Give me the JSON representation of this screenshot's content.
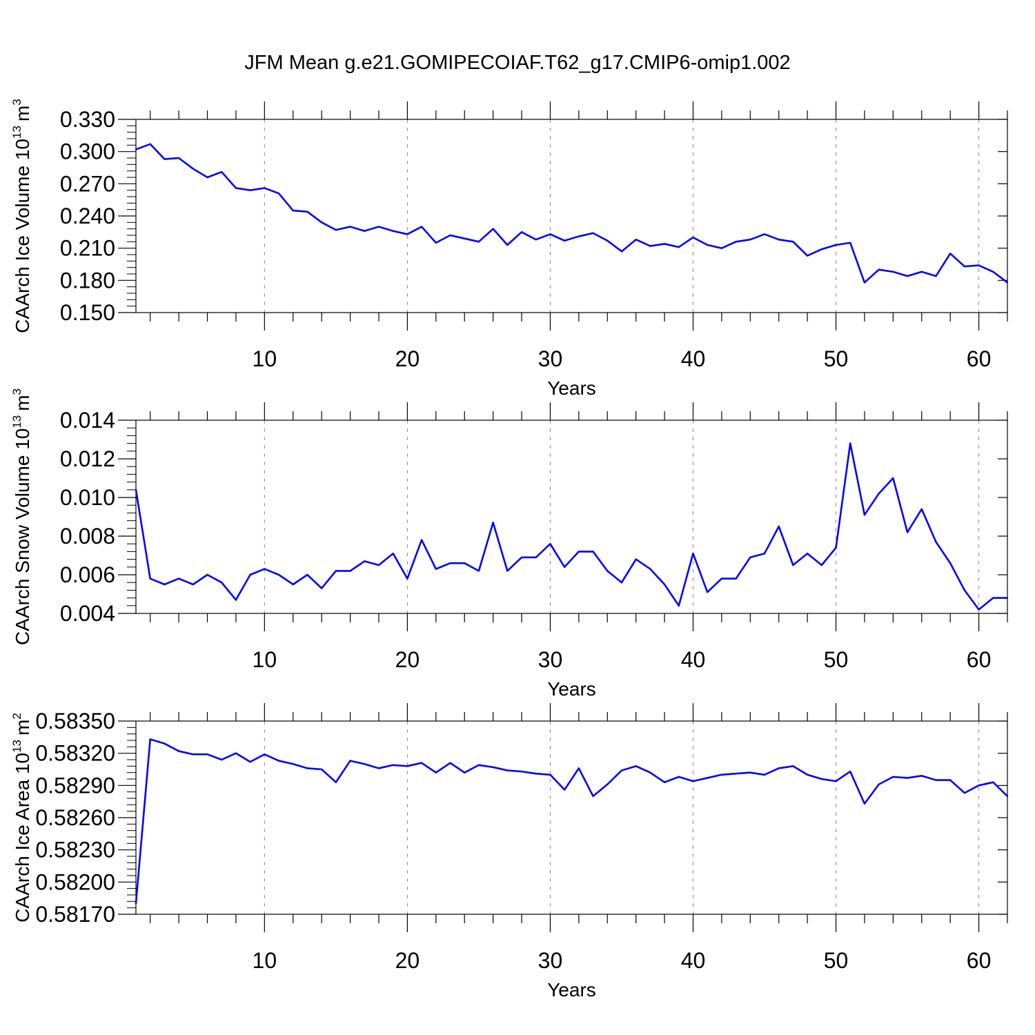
{
  "title": "JFM Mean g.e21.GOMIPECOIAF.T62_g17.CMIP6-omip1.002",
  "colors": {
    "line": "#0000ff",
    "axis": "#000000",
    "grid": "#888888"
  },
  "chart_data": [
    {
      "type": "line",
      "ylabel": "CAArch Ice Volume 10",
      "ylabel_exp": "13",
      "ylabel_unit": "m",
      "ylabel_unit_exp": "3",
      "xlabel": "Years",
      "xlim": [
        1,
        62
      ],
      "ylim": [
        0.15,
        0.33
      ],
      "yticks": [
        "0.150",
        "0.180",
        "0.210",
        "0.240",
        "0.270",
        "0.300",
        "0.330"
      ],
      "xticks": [
        "10",
        "20",
        "30",
        "40",
        "50",
        "60"
      ],
      "x": [
        1,
        2,
        3,
        4,
        5,
        6,
        7,
        8,
        9,
        10,
        11,
        12,
        13,
        14,
        15,
        16,
        17,
        18,
        19,
        20,
        21,
        22,
        23,
        24,
        25,
        26,
        27,
        28,
        29,
        30,
        31,
        32,
        33,
        34,
        35,
        36,
        37,
        38,
        39,
        40,
        41,
        42,
        43,
        44,
        45,
        46,
        47,
        48,
        49,
        50,
        51,
        52,
        53,
        54,
        55,
        56,
        57,
        58,
        59,
        60,
        61,
        62
      ],
      "values": [
        0.302,
        0.307,
        0.293,
        0.294,
        0.284,
        0.276,
        0.281,
        0.266,
        0.264,
        0.266,
        0.261,
        0.245,
        0.244,
        0.234,
        0.227,
        0.23,
        0.226,
        0.23,
        0.226,
        0.223,
        0.23,
        0.215,
        0.222,
        0.219,
        0.216,
        0.228,
        0.213,
        0.225,
        0.218,
        0.223,
        0.217,
        0.221,
        0.224,
        0.217,
        0.207,
        0.218,
        0.212,
        0.214,
        0.211,
        0.22,
        0.213,
        0.21,
        0.216,
        0.218,
        0.223,
        0.218,
        0.216,
        0.203,
        0.209,
        0.213,
        0.215,
        0.178,
        0.19,
        0.188,
        0.184,
        0.188,
        0.184,
        0.205,
        0.193,
        0.194,
        0.188,
        0.178
      ]
    },
    {
      "type": "line",
      "ylabel": "CAArch Snow Volume 10",
      "ylabel_exp": "13",
      "ylabel_unit": "m",
      "ylabel_unit_exp": "3",
      "xlabel": "Years",
      "xlim": [
        1,
        62
      ],
      "ylim": [
        0.004,
        0.014
      ],
      "yticks": [
        "0.004",
        "0.006",
        "0.008",
        "0.010",
        "0.012",
        "0.014"
      ],
      "xticks": [
        "10",
        "20",
        "30",
        "40",
        "50",
        "60"
      ],
      "x": [
        1,
        2,
        3,
        4,
        5,
        6,
        7,
        8,
        9,
        10,
        11,
        12,
        13,
        14,
        15,
        16,
        17,
        18,
        19,
        20,
        21,
        22,
        23,
        24,
        25,
        26,
        27,
        28,
        29,
        30,
        31,
        32,
        33,
        34,
        35,
        36,
        37,
        38,
        39,
        40,
        41,
        42,
        43,
        44,
        45,
        46,
        47,
        48,
        49,
        50,
        51,
        52,
        53,
        54,
        55,
        56,
        57,
        58,
        59,
        60,
        61,
        62
      ],
      "values": [
        0.0104,
        0.0058,
        0.0055,
        0.0058,
        0.0055,
        0.006,
        0.0056,
        0.0047,
        0.006,
        0.0063,
        0.006,
        0.0055,
        0.006,
        0.0053,
        0.0062,
        0.0062,
        0.0067,
        0.0065,
        0.0071,
        0.0058,
        0.0078,
        0.0063,
        0.0066,
        0.0066,
        0.0062,
        0.0087,
        0.0062,
        0.0069,
        0.0069,
        0.0076,
        0.0064,
        0.0072,
        0.0072,
        0.0062,
        0.0056,
        0.0068,
        0.0063,
        0.0055,
        0.0044,
        0.0071,
        0.0051,
        0.0058,
        0.0058,
        0.0069,
        0.0071,
        0.0085,
        0.0065,
        0.0071,
        0.0065,
        0.0074,
        0.0128,
        0.0091,
        0.0102,
        0.011,
        0.0082,
        0.0094,
        0.0077,
        0.0066,
        0.0052,
        0.0042,
        0.0048,
        0.0048
      ]
    },
    {
      "type": "line",
      "ylabel": "CAArch Ice Area 10",
      "ylabel_exp": "13",
      "ylabel_unit": "m",
      "ylabel_unit_exp": "2",
      "xlabel": "Years",
      "xlim": [
        1,
        62
      ],
      "ylim": [
        0.5817,
        0.5835
      ],
      "yticks": [
        "0.58170",
        "0.58200",
        "0.58230",
        "0.58260",
        "0.58290",
        "0.58320",
        "0.58350"
      ],
      "xticks": [
        "10",
        "20",
        "30",
        "40",
        "50",
        "60"
      ],
      "x": [
        1,
        2,
        3,
        4,
        5,
        6,
        7,
        8,
        9,
        10,
        11,
        12,
        13,
        14,
        15,
        16,
        17,
        18,
        19,
        20,
        21,
        22,
        23,
        24,
        25,
        26,
        27,
        28,
        29,
        30,
        31,
        32,
        33,
        34,
        35,
        36,
        37,
        38,
        39,
        40,
        41,
        42,
        43,
        44,
        45,
        46,
        47,
        48,
        49,
        50,
        51,
        52,
        53,
        54,
        55,
        56,
        57,
        58,
        59,
        60,
        61,
        62
      ],
      "values": [
        0.5818,
        0.58333,
        0.58329,
        0.58322,
        0.58319,
        0.58319,
        0.58314,
        0.5832,
        0.58312,
        0.58319,
        0.58313,
        0.5831,
        0.58306,
        0.58305,
        0.58293,
        0.58313,
        0.5831,
        0.58306,
        0.58309,
        0.58308,
        0.58311,
        0.58302,
        0.58311,
        0.58302,
        0.58309,
        0.58307,
        0.58304,
        0.58303,
        0.58301,
        0.583,
        0.58286,
        0.58306,
        0.5828,
        0.58291,
        0.58304,
        0.58308,
        0.58302,
        0.58293,
        0.58298,
        0.58294,
        0.58297,
        0.583,
        0.58301,
        0.58302,
        0.583,
        0.58306,
        0.58308,
        0.583,
        0.58296,
        0.58294,
        0.58303,
        0.58273,
        0.58291,
        0.58298,
        0.58297,
        0.58299,
        0.58295,
        0.58295,
        0.58283,
        0.5829,
        0.58293,
        0.5828
      ]
    }
  ]
}
